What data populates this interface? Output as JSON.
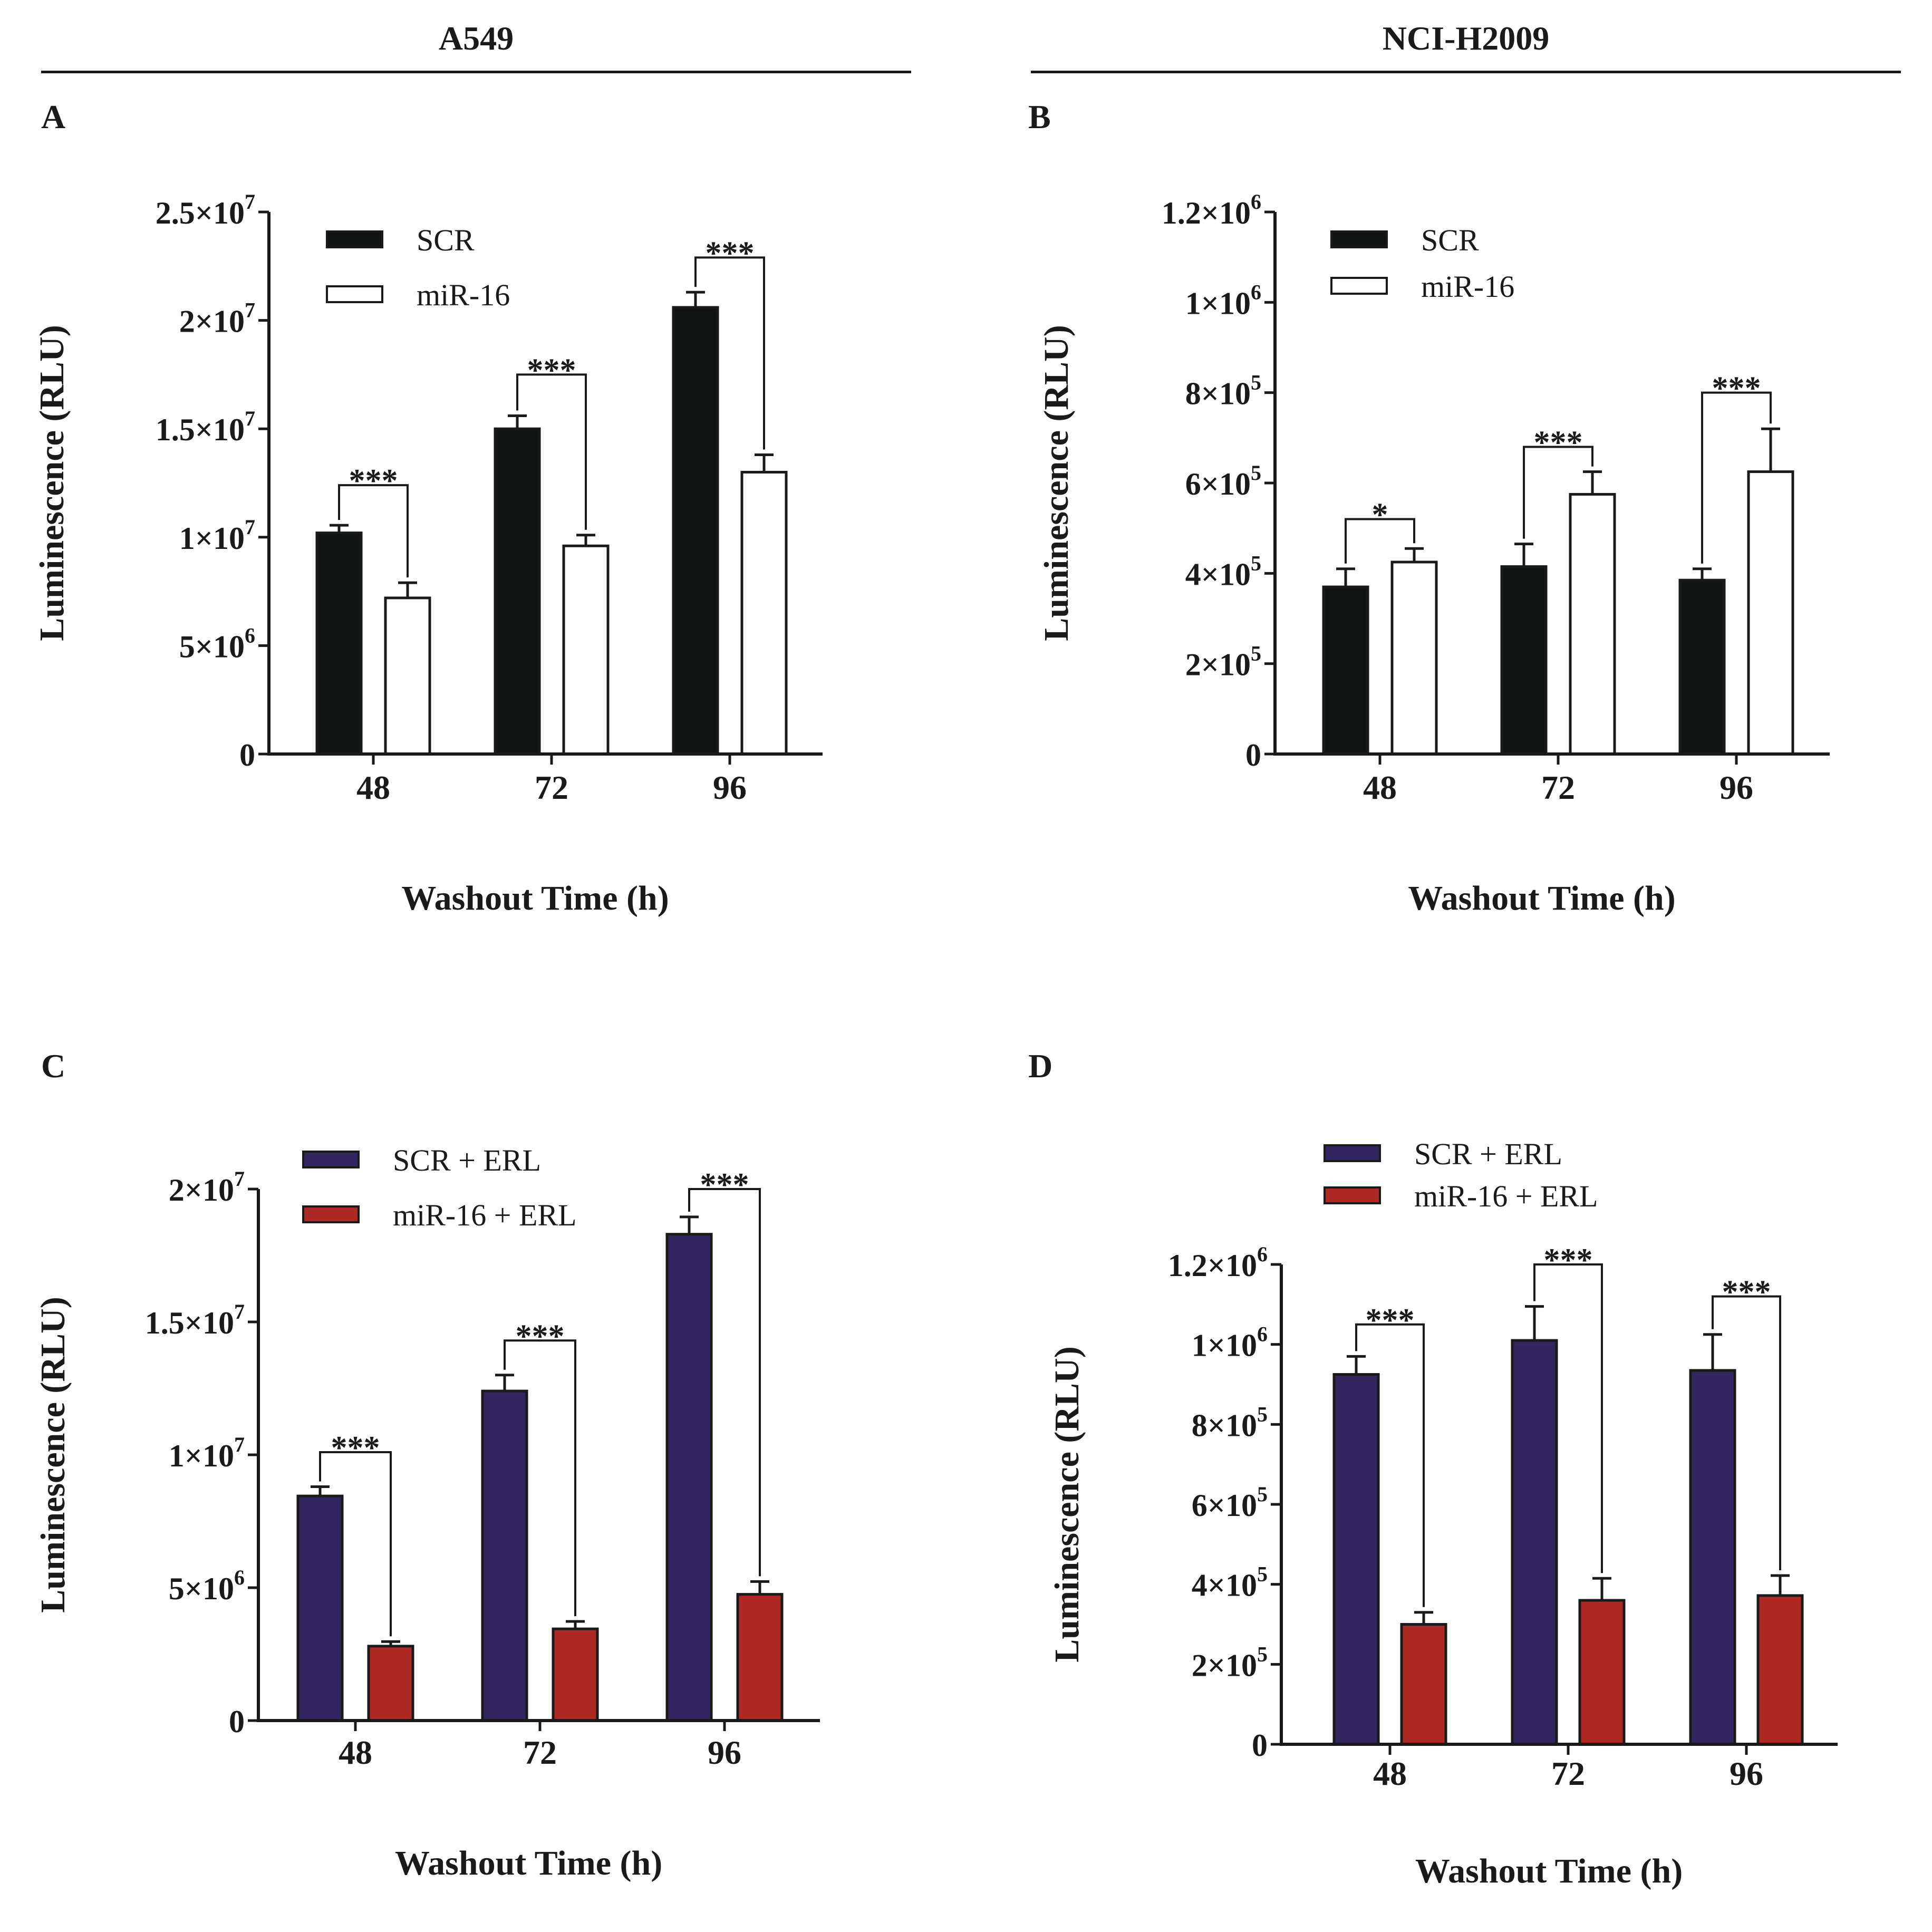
{
  "columns": [
    {
      "title": "A549"
    },
    {
      "title": "NCI-H2009"
    }
  ],
  "panels": [
    {
      "letter": "A"
    },
    {
      "letter": "B"
    },
    {
      "letter": "C"
    },
    {
      "letter": "D"
    }
  ],
  "colors": {
    "scr": "#111512",
    "mir16": "#ffffff",
    "scr_erl": "#33265f",
    "mir16_erl": "#ae2924",
    "ink": "#1a1a1a"
  },
  "chart_data": [
    {
      "panel": "A",
      "type": "bar",
      "xlabel": "Washout Time (h)",
      "ylabel": "Luminescence (RLU)",
      "categories": [
        "48",
        "72",
        "96"
      ],
      "ylim": [
        0,
        25000000
      ],
      "yticks": [
        {
          "value": 0,
          "mant": "0",
          "exp": ""
        },
        {
          "value": 5000000,
          "mant": "5×10",
          "exp": "6"
        },
        {
          "value": 10000000,
          "mant": "1×10",
          "exp": "7"
        },
        {
          "value": 15000000,
          "mant": "1.5×10",
          "exp": "7"
        },
        {
          "value": 20000000,
          "mant": "2×10",
          "exp": "7"
        },
        {
          "value": 25000000,
          "mant": "2.5×10",
          "exp": "7"
        }
      ],
      "legend": "top-left",
      "series": [
        {
          "name": "SCR",
          "color": "#111512",
          "values": [
            10200000,
            15000000,
            20600000
          ],
          "errors": [
            350000,
            600000,
            700000
          ]
        },
        {
          "name": "miR-16",
          "color": "#ffffff",
          "values": [
            7200000,
            9600000,
            13000000
          ],
          "errors": [
            700000,
            500000,
            800000
          ]
        }
      ],
      "significance": [
        {
          "category": "48",
          "label": "***",
          "y": 12400000
        },
        {
          "category": "72",
          "label": "***",
          "y": 17500000
        },
        {
          "category": "96",
          "label": "***",
          "y": 22900000
        }
      ]
    },
    {
      "panel": "B",
      "type": "bar",
      "xlabel": "Washout Time (h)",
      "ylabel": "Luminescence (RLU)",
      "categories": [
        "48",
        "72",
        "96"
      ],
      "ylim": [
        0,
        1200000
      ],
      "yticks": [
        {
          "value": 0,
          "mant": "0",
          "exp": ""
        },
        {
          "value": 200000,
          "mant": "2×10",
          "exp": "5"
        },
        {
          "value": 400000,
          "mant": "4×10",
          "exp": "5"
        },
        {
          "value": 600000,
          "mant": "6×10",
          "exp": "5"
        },
        {
          "value": 800000,
          "mant": "8×10",
          "exp": "5"
        },
        {
          "value": 1000000,
          "mant": "1×10",
          "exp": "6"
        },
        {
          "value": 1200000,
          "mant": "1.2×10",
          "exp": "6"
        }
      ],
      "legend": "top-left",
      "series": [
        {
          "name": "SCR",
          "color": "#111512",
          "values": [
            370000,
            415000,
            385000
          ],
          "errors": [
            40000,
            50000,
            25000
          ]
        },
        {
          "name": "miR-16",
          "color": "#ffffff",
          "values": [
            425000,
            575000,
            625000
          ],
          "errors": [
            30000,
            50000,
            95000
          ]
        }
      ],
      "significance": [
        {
          "category": "48",
          "label": "*",
          "y": 520000
        },
        {
          "category": "72",
          "label": "***",
          "y": 680000
        },
        {
          "category": "96",
          "label": "***",
          "y": 800000
        }
      ]
    },
    {
      "panel": "C",
      "type": "bar",
      "xlabel": "Washout Time (h)",
      "ylabel": "Luminescence (RLU)",
      "categories": [
        "48",
        "72",
        "96"
      ],
      "ylim": [
        0,
        20000000
      ],
      "yticks": [
        {
          "value": 0,
          "mant": "0",
          "exp": ""
        },
        {
          "value": 5000000,
          "mant": "5×10",
          "exp": "6"
        },
        {
          "value": 10000000,
          "mant": "1×10",
          "exp": "7"
        },
        {
          "value": 15000000,
          "mant": "1.5×10",
          "exp": "7"
        },
        {
          "value": 20000000,
          "mant": "2×10",
          "exp": "7"
        }
      ],
      "legend": "top-left",
      "series": [
        {
          "name": "SCR + ERL",
          "color": "#33265f",
          "values": [
            8450000,
            12400000,
            18300000
          ],
          "errors": [
            350000,
            600000,
            650000
          ]
        },
        {
          "name": "miR-16 + ERL",
          "color": "#ae2924",
          "values": [
            2800000,
            3450000,
            4750000
          ],
          "errors": [
            170000,
            280000,
            480000
          ]
        }
      ],
      "significance": [
        {
          "category": "48",
          "label": "***",
          "y": 10100000
        },
        {
          "category": "72",
          "label": "***",
          "y": 14300000
        },
        {
          "category": "96",
          "label": "***",
          "y": 20000000
        }
      ]
    },
    {
      "panel": "D",
      "type": "bar",
      "xlabel": "Washout Time (h)",
      "ylabel": "Luminescence (RLU)",
      "categories": [
        "48",
        "72",
        "96"
      ],
      "ylim": [
        0,
        1200000
      ],
      "yticks": [
        {
          "value": 0,
          "mant": "0",
          "exp": ""
        },
        {
          "value": 200000,
          "mant": "2×10",
          "exp": "5"
        },
        {
          "value": 400000,
          "mant": "4×10",
          "exp": "5"
        },
        {
          "value": 600000,
          "mant": "6×10",
          "exp": "5"
        },
        {
          "value": 800000,
          "mant": "8×10",
          "exp": "5"
        },
        {
          "value": 1000000,
          "mant": "1×10",
          "exp": "6"
        },
        {
          "value": 1200000,
          "mant": "1.2×10",
          "exp": "6"
        }
      ],
      "legend": "above",
      "series": [
        {
          "name": "SCR + ERL",
          "color": "#33265f",
          "values": [
            925000,
            1010000,
            935000
          ],
          "errors": [
            45000,
            85000,
            90000
          ]
        },
        {
          "name": "miR-16 + ERL",
          "color": "#ae2924",
          "values": [
            300000,
            360000,
            372000
          ],
          "errors": [
            30000,
            55000,
            50000
          ]
        }
      ],
      "significance": [
        {
          "category": "48",
          "label": "***",
          "y": 1050000
        },
        {
          "category": "72",
          "label": "***",
          "y": 1200000
        },
        {
          "category": "96",
          "label": "***",
          "y": 1120000
        }
      ]
    }
  ]
}
